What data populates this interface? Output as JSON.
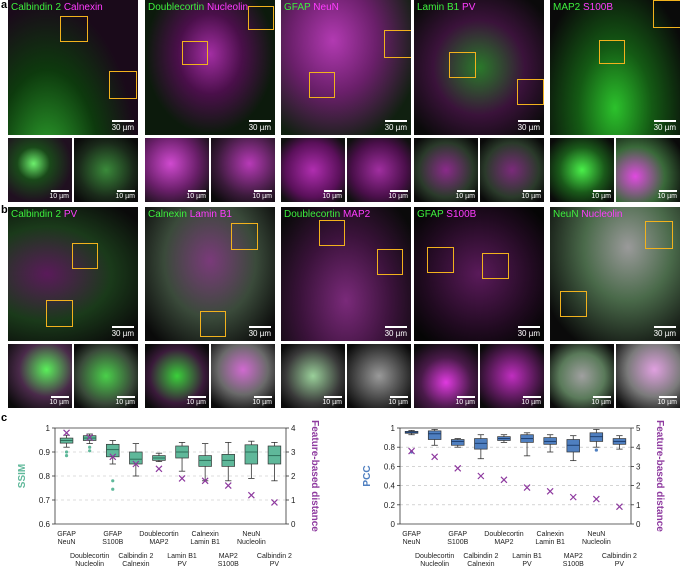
{
  "panels": {
    "a": {
      "letter": "a",
      "tiles": [
        {
          "green": "Calbindin 2",
          "magenta": "Calnexin",
          "scale": "30 µm",
          "mag_scale": "10 µm"
        },
        {
          "green": "Doublecortin",
          "magenta": "Nucleolin",
          "scale": "30 µm",
          "mag_scale": "10 µm"
        },
        {
          "green": "GFAP",
          "magenta": "NeuN",
          "scale": "30 µm",
          "mag_scale": "10 µm"
        },
        {
          "green": "Lamin B1",
          "magenta": "PV",
          "scale": "30 µm",
          "mag_scale": "10 µm"
        },
        {
          "green": "MAP2",
          "magenta": "S100B",
          "scale": "30 µm",
          "mag_scale": "10 µm"
        }
      ]
    },
    "b": {
      "letter": "b",
      "tiles": [
        {
          "green": "Calbindin 2",
          "magenta": "PV",
          "scale": "30 µm",
          "mag_scale": "10 µm"
        },
        {
          "green": "Calnexin",
          "magenta": "Lamin B1",
          "scale": "30 µm",
          "mag_scale": "10 µm"
        },
        {
          "green": "Doublecortin",
          "magenta": "MAP2",
          "scale": "30 µm",
          "mag_scale": "10 µm"
        },
        {
          "green": "GFAP",
          "magenta": "S100B",
          "scale": "30 µm",
          "mag_scale": "10 µm"
        },
        {
          "green": "NeuN",
          "magenta": "Nucleolin",
          "scale": "30 µm",
          "mag_scale": "10 µm"
        }
      ]
    },
    "c": {
      "letter": "c"
    }
  },
  "colors": {
    "teal": "#5fb89a",
    "blue": "#4f7fc0",
    "purple": "#8e3a9f",
    "roi": "#f2b21d"
  },
  "chart_data": [
    {
      "type": "box",
      "ylabel": "SSIM",
      "y2label": "Feature-based distance",
      "ylim": [
        0.6,
        1.0
      ],
      "yticks": [
        "0.6",
        "0.7",
        "0.8",
        "0.9",
        "1"
      ],
      "y2lim": [
        0,
        4
      ],
      "y2ticks": [
        "0",
        "1",
        "2",
        "3",
        "4"
      ],
      "categories": [
        "GFAP\nNeuN",
        "Doublecortin\nNucleolin",
        "GFAP\nS100B",
        "Calbindin 2\nCalnexin",
        "Doublecortin\nMAP2",
        "Lamin B1\nPV",
        "Calnexin\nLamin B1",
        "MAP2\nS100B",
        "NeuN\nNucleolin",
        "Calbindin 2\nPV"
      ],
      "boxes": [
        {
          "min": 0.92,
          "q1": 0.937,
          "median": 0.948,
          "q3": 0.958,
          "max": 0.97,
          "outliers": [
            0.9,
            0.885
          ]
        },
        {
          "min": 0.935,
          "q1": 0.948,
          "median": 0.958,
          "q3": 0.968,
          "max": 0.975,
          "outliers": [
            0.92,
            0.905
          ]
        },
        {
          "min": 0.85,
          "q1": 0.88,
          "median": 0.91,
          "q3": 0.932,
          "max": 0.948,
          "outliers": [
            0.78,
            0.745
          ]
        },
        {
          "min": 0.8,
          "q1": 0.85,
          "median": 0.87,
          "q3": 0.9,
          "max": 0.935,
          "outliers": []
        },
        {
          "min": 0.86,
          "q1": 0.865,
          "median": 0.875,
          "q3": 0.885,
          "max": 0.895,
          "outliers": []
        },
        {
          "min": 0.82,
          "q1": 0.875,
          "median": 0.9,
          "q3": 0.925,
          "max": 0.94,
          "outliers": []
        },
        {
          "min": 0.78,
          "q1": 0.84,
          "median": 0.865,
          "q3": 0.885,
          "max": 0.935,
          "outliers": []
        },
        {
          "min": 0.78,
          "q1": 0.84,
          "median": 0.865,
          "q3": 0.89,
          "max": 0.94,
          "outliers": []
        },
        {
          "min": 0.79,
          "q1": 0.85,
          "median": 0.9,
          "q3": 0.93,
          "max": 0.945,
          "outliers": []
        },
        {
          "min": 0.78,
          "q1": 0.85,
          "median": 0.885,
          "q3": 0.925,
          "max": 0.94,
          "outliers": []
        }
      ],
      "feature_distance": [
        3.8,
        3.6,
        2.8,
        2.5,
        2.3,
        1.9,
        1.8,
        1.6,
        1.2,
        0.9
      ]
    },
    {
      "type": "box",
      "ylabel": "PCC",
      "y2label": "Feature-based distance",
      "ylim": [
        0,
        1
      ],
      "yticks": [
        "0",
        "0.2",
        "0.4",
        "0.6",
        "0.8",
        "1"
      ],
      "y2lim": [
        0,
        5
      ],
      "y2ticks": [
        "0",
        "1",
        "2",
        "3",
        "4",
        "5"
      ],
      "categories": [
        "GFAP\nNeuN",
        "Doublecortin\nNucleolin",
        "GFAP\nS100B",
        "Calbindin 2\nCalnexin",
        "Doublecortin\nMAP2",
        "Lamin B1\nPV",
        "Calnexin\nLamin B1",
        "MAP2\nS100B",
        "NeuN\nNucleolin",
        "Calbindin 2\nPV"
      ],
      "boxes": [
        {
          "min": 0.93,
          "q1": 0.945,
          "median": 0.955,
          "q3": 0.965,
          "max": 0.975,
          "outliers": [
            0.75
          ]
        },
        {
          "min": 0.82,
          "q1": 0.88,
          "median": 0.94,
          "q3": 0.97,
          "max": 0.985,
          "outliers": []
        },
        {
          "min": 0.8,
          "q1": 0.82,
          "median": 0.86,
          "q3": 0.88,
          "max": 0.89,
          "outliers": []
        },
        {
          "min": 0.68,
          "q1": 0.78,
          "median": 0.84,
          "q3": 0.89,
          "max": 0.93,
          "outliers": []
        },
        {
          "min": 0.85,
          "q1": 0.87,
          "median": 0.89,
          "q3": 0.91,
          "max": 0.93,
          "outliers": []
        },
        {
          "min": 0.71,
          "q1": 0.85,
          "median": 0.89,
          "q3": 0.93,
          "max": 0.95,
          "outliers": []
        },
        {
          "min": 0.75,
          "q1": 0.83,
          "median": 0.86,
          "q3": 0.9,
          "max": 0.93,
          "outliers": []
        },
        {
          "min": 0.66,
          "q1": 0.75,
          "median": 0.82,
          "q3": 0.88,
          "max": 0.92,
          "outliers": []
        },
        {
          "min": 0.8,
          "q1": 0.86,
          "median": 0.91,
          "q3": 0.95,
          "max": 0.985,
          "outliers": [
            0.77
          ]
        },
        {
          "min": 0.78,
          "q1": 0.83,
          "median": 0.86,
          "q3": 0.89,
          "max": 0.92,
          "outliers": []
        }
      ],
      "feature_distance": [
        3.8,
        3.5,
        2.9,
        2.5,
        2.3,
        1.9,
        1.7,
        1.4,
        1.3,
        0.9
      ]
    }
  ]
}
